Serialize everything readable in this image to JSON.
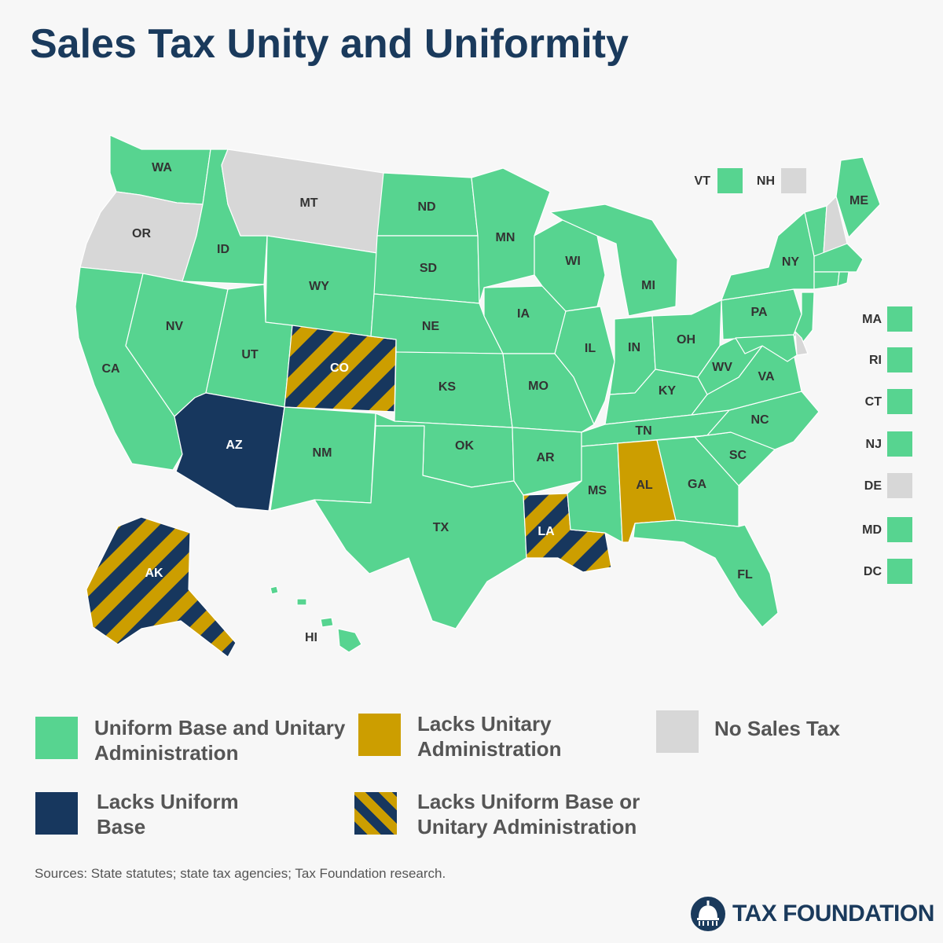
{
  "title": "Sales Tax Unity and Uniformity",
  "colors": {
    "uniform": "#57d490",
    "lacks_unitary": "#cc9e00",
    "lacks_uniform": "#17375e",
    "no_tax": "#d7d7d7",
    "stripe_a": "#17375e",
    "stripe_b": "#cc9e00"
  },
  "states": {
    "WA": "WA",
    "OR": "OR",
    "CA": "CA",
    "ID": "ID",
    "NV": "NV",
    "MT": "MT",
    "WY": "WY",
    "UT": "UT",
    "AZ": "AZ",
    "CO": "CO",
    "NM": "NM",
    "ND": "ND",
    "SD": "SD",
    "NE": "NE",
    "KS": "KS",
    "OK": "OK",
    "TX": "TX",
    "MN": "MN",
    "IA": "IA",
    "MO": "MO",
    "AR": "AR",
    "LA": "LA",
    "WI": "WI",
    "IL": "IL",
    "MI": "MI",
    "IN": "IN",
    "OH": "OH",
    "KY": "KY",
    "TN": "TN",
    "MS": "MS",
    "AL": "AL",
    "GA": "GA",
    "FL": "FL",
    "SC": "SC",
    "NC": "NC",
    "VA": "VA",
    "WV": "WV",
    "PA": "PA",
    "NY": "NY",
    "ME": "ME",
    "AK": "AK",
    "HI": "HI"
  },
  "state_status": {
    "WA": "uniform",
    "OR": "no_tax",
    "CA": "uniform",
    "ID": "uniform",
    "NV": "uniform",
    "MT": "no_tax",
    "WY": "uniform",
    "UT": "uniform",
    "AZ": "lacks_uniform",
    "CO": "lacks_both",
    "NM": "uniform",
    "ND": "uniform",
    "SD": "uniform",
    "NE": "uniform",
    "KS": "uniform",
    "OK": "uniform",
    "TX": "uniform",
    "MN": "uniform",
    "IA": "uniform",
    "MO": "uniform",
    "AR": "uniform",
    "LA": "lacks_both",
    "WI": "uniform",
    "IL": "uniform",
    "MI": "uniform",
    "IN": "uniform",
    "OH": "uniform",
    "KY": "uniform",
    "TN": "uniform",
    "MS": "uniform",
    "AL": "lacks_unitary",
    "GA": "uniform",
    "FL": "uniform",
    "SC": "uniform",
    "NC": "uniform",
    "VA": "uniform",
    "WV": "uniform",
    "PA": "uniform",
    "NY": "uniform",
    "ME": "uniform",
    "AK": "lacks_both",
    "HI": "uniform",
    "VT": "uniform",
    "NH": "no_tax",
    "MA": "uniform",
    "RI": "uniform",
    "CT": "uniform",
    "NJ": "uniform",
    "DE": "no_tax",
    "MD": "uniform",
    "DC": "uniform"
  },
  "small_states_top": [
    {
      "label": "VT",
      "status": "uniform"
    },
    {
      "label": "NH",
      "status": "no_tax"
    }
  ],
  "small_states_side": [
    {
      "label": "MA",
      "status": "uniform"
    },
    {
      "label": "RI",
      "status": "uniform"
    },
    {
      "label": "CT",
      "status": "uniform"
    },
    {
      "label": "NJ",
      "status": "uniform"
    },
    {
      "label": "DE",
      "status": "no_tax"
    },
    {
      "label": "MD",
      "status": "uniform"
    },
    {
      "label": "DC",
      "status": "uniform"
    }
  ],
  "legend": [
    {
      "key": "uniform",
      "line1": "Uniform Base and Unitary",
      "line2": "Administration"
    },
    {
      "key": "lacks_unitary",
      "line1": "Lacks Unitary",
      "line2": "Administration"
    },
    {
      "key": "no_tax",
      "line1": "No Sales Tax",
      "line2": ""
    },
    {
      "key": "lacks_uniform",
      "line1": "Lacks Uniform",
      "line2": "Base"
    },
    {
      "key": "lacks_both",
      "line1": "Lacks Uniform Base or",
      "line2": "Unitary Administration"
    }
  ],
  "source": "Sources: State statutes; state tax agencies; Tax Foundation research.",
  "logo_text": "TAX FOUNDATION"
}
